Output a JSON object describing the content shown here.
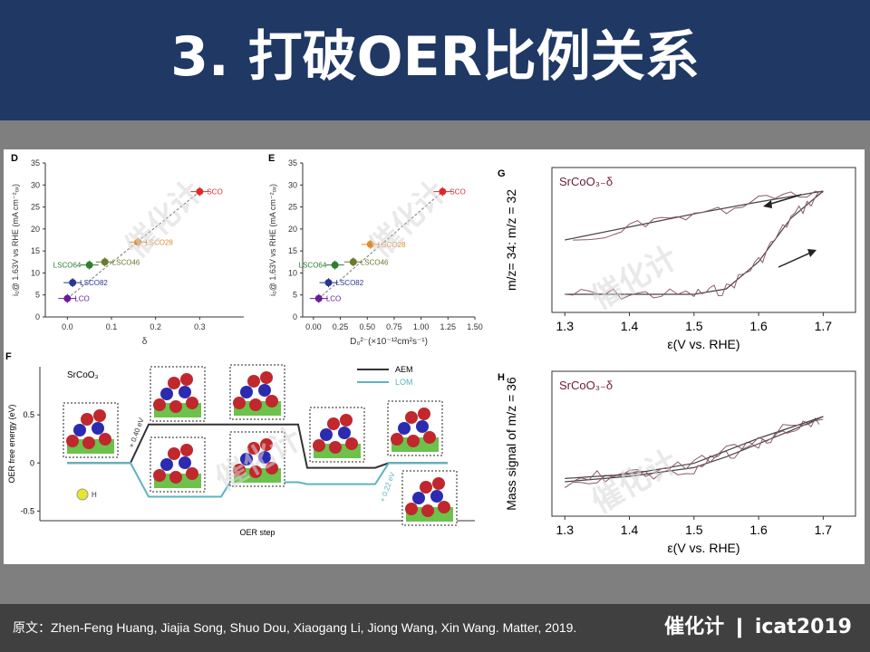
{
  "header": {
    "title": "3. 打破OER比例关系"
  },
  "footer": {
    "source": "原文：Zhen-Feng Huang, Jiajia Song, Shuo Dou, Xiaogang Li, Jiong Wang, Xin Wang. Matter, 2019.",
    "brand": "催化计 ❙ icat2019"
  },
  "watermark": "催化计",
  "colors": {
    "header_bg": "#1f3864",
    "band_bg": "#7f7f7f",
    "footer_bg": "#404040",
    "aem_line": "#333333",
    "lom_line": "#5fb3c0",
    "sco": "#e0282e",
    "lsco28": "#e08a2e",
    "lsco46": "#6a7a2e",
    "lsco64": "#2e7d32",
    "lsco82": "#283593",
    "lco": "#6a1b9a",
    "ms_trace": "#8b5a6a"
  },
  "chart_data": [
    {
      "panel": "D",
      "type": "scatter",
      "xlabel": "δ",
      "ylabel": "i₀@ 1.63V vs RHE (mA cm⁻²ₒₓ)",
      "xlim": [
        -0.05,
        0.4
      ],
      "ylim": [
        0,
        35
      ],
      "xticks": [
        "0.0",
        "0.1",
        "0.2",
        "0.3"
      ],
      "yticks": [
        "0",
        "5",
        "10",
        "15",
        "20",
        "25",
        "30",
        "35"
      ],
      "points": [
        {
          "name": "LCO",
          "x": 0.0,
          "y": 4.2,
          "color": "#6a1b9a"
        },
        {
          "name": "LSCO82",
          "x": 0.012,
          "y": 7.8,
          "color": "#283593"
        },
        {
          "name": "LSCO64",
          "x": 0.05,
          "y": 11.8,
          "color": "#2e7d32"
        },
        {
          "name": "LSCO46",
          "x": 0.085,
          "y": 12.5,
          "color": "#6a7a2e"
        },
        {
          "name": "LSCO28",
          "x": 0.16,
          "y": 17.0,
          "color": "#e08a2e"
        },
        {
          "name": "SCO",
          "x": 0.3,
          "y": 28.5,
          "color": "#e0282e"
        }
      ]
    },
    {
      "panel": "E",
      "type": "scatter",
      "xlabel": "D₀²⁻(×10⁻¹²cm²s⁻¹)",
      "ylabel": "i₀@ 1.63V vs RHE (mA cm⁻²ₒₓ)",
      "xlim": [
        -0.1,
        1.5
      ],
      "ylim": [
        0,
        35
      ],
      "xticks": [
        "0.00",
        "0.25",
        "0.50",
        "0.75",
        "1.00",
        "1.25",
        "1.50"
      ],
      "yticks": [
        "0",
        "5",
        "10",
        "15",
        "20",
        "25",
        "30",
        "35"
      ],
      "points": [
        {
          "name": "LCO",
          "x": 0.05,
          "y": 4.2,
          "color": "#6a1b9a"
        },
        {
          "name": "LSCO82",
          "x": 0.14,
          "y": 7.8,
          "color": "#283593"
        },
        {
          "name": "LSCO64",
          "x": 0.2,
          "y": 11.8,
          "color": "#2e7d32"
        },
        {
          "name": "LSCO46",
          "x": 0.37,
          "y": 12.5,
          "color": "#6a7a2e"
        },
        {
          "name": "LSCO28",
          "x": 0.53,
          "y": 16.5,
          "color": "#e08a2e"
        },
        {
          "name": "SCO",
          "x": 1.2,
          "y": 28.5,
          "color": "#e0282e"
        }
      ]
    },
    {
      "panel": "F",
      "type": "line",
      "title": "SrCoO₃",
      "xlabel": "OER step",
      "ylabel": "OER free energy (eV)",
      "ylim": [
        -0.6,
        1.0
      ],
      "yticks": [
        "-0.5",
        "0",
        "0.5"
      ],
      "legend": [
        "AEM",
        "LOM"
      ],
      "series": [
        {
          "name": "AEM",
          "values": [
            0,
            0.4,
            0.4,
            -0.05,
            0
          ]
        },
        {
          "name": "LOM",
          "values": [
            0,
            -0.35,
            -0.2,
            -0.22,
            0
          ]
        }
      ],
      "annotations": [
        "+ 0.40 eV",
        "+ 0.22 eV",
        "I₀",
        "I₁",
        "H"
      ]
    },
    {
      "panel": "G",
      "type": "line",
      "title": "SrCoO₃₋δ",
      "xlabel": "ε(V vs. RHE)",
      "ylabel": "m/z= 34: m/z = 32",
      "xlim": [
        1.28,
        1.75
      ],
      "xticks": [
        "1.3",
        "1.4",
        "1.5",
        "1.6",
        "1.7"
      ],
      "series": [
        {
          "name": "forward",
          "x": [
            1.3,
            1.4,
            1.5,
            1.55,
            1.6,
            1.65,
            1.7
          ],
          "values": [
            0.0,
            0.0,
            0.0,
            0.05,
            0.3,
            0.7,
            0.95
          ]
        },
        {
          "name": "reverse",
          "x": [
            1.7,
            1.6,
            1.5,
            1.4,
            1.3
          ],
          "values": [
            0.95,
            0.85,
            0.74,
            0.62,
            0.5
          ]
        }
      ]
    },
    {
      "panel": "H",
      "type": "line",
      "title": "SrCoO₃₋δ",
      "xlabel": "ε(V vs. RHE)",
      "ylabel": "Mass signal of m/z = 36",
      "xlim": [
        1.28,
        1.75
      ],
      "xticks": [
        "1.3",
        "1.4",
        "1.5",
        "1.6",
        "1.7"
      ],
      "series": [
        {
          "name": "forward",
          "x": [
            1.3,
            1.4,
            1.5,
            1.55,
            1.6,
            1.65,
            1.7
          ],
          "values": [
            0.15,
            0.2,
            0.28,
            0.38,
            0.5,
            0.62,
            0.75
          ]
        },
        {
          "name": "reverse",
          "x": [
            1.7,
            1.6,
            1.5,
            1.4,
            1.3
          ],
          "values": [
            0.75,
            0.55,
            0.32,
            0.22,
            0.18
          ]
        }
      ]
    }
  ]
}
